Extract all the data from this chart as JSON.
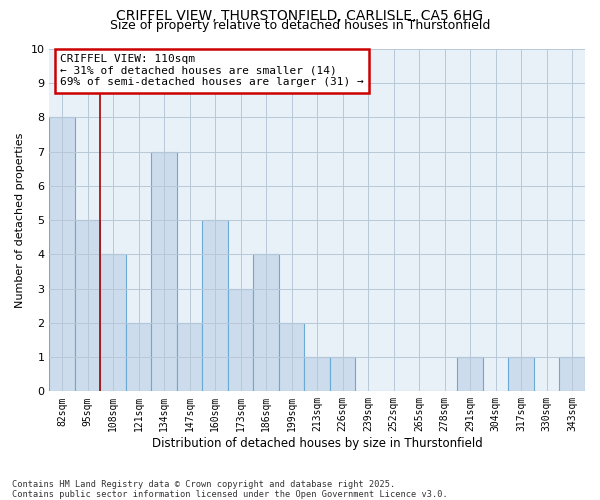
{
  "title1": "CRIFFEL VIEW, THURSTONFIELD, CARLISLE, CA5 6HG",
  "title2": "Size of property relative to detached houses in Thurstonfield",
  "xlabel": "Distribution of detached houses by size in Thurstonfield",
  "ylabel": "Number of detached properties",
  "footer1": "Contains HM Land Registry data © Crown copyright and database right 2025.",
  "footer2": "Contains public sector information licensed under the Open Government Licence v3.0.",
  "annotation_title": "CRIFFEL VIEW: 110sqm",
  "annotation_line1": "← 31% of detached houses are smaller (14)",
  "annotation_line2": "69% of semi-detached houses are larger (31) →",
  "bar_labels": [
    "82sqm",
    "95sqm",
    "108sqm",
    "121sqm",
    "134sqm",
    "147sqm",
    "160sqm",
    "173sqm",
    "186sqm",
    "199sqm",
    "213sqm",
    "226sqm",
    "239sqm",
    "252sqm",
    "265sqm",
    "278sqm",
    "291sqm",
    "304sqm",
    "317sqm",
    "330sqm",
    "343sqm"
  ],
  "bar_values": [
    8,
    5,
    4,
    2,
    7,
    2,
    5,
    3,
    4,
    2,
    1,
    1,
    0,
    0,
    0,
    0,
    1,
    0,
    1,
    0,
    1
  ],
  "bar_color": "#ccdcec",
  "bar_edge_color": "#6aaad4",
  "vline_x_index": 2,
  "vline_color": "#aa0000",
  "ylim": [
    0,
    10
  ],
  "yticks": [
    0,
    1,
    2,
    3,
    4,
    5,
    6,
    7,
    8,
    9,
    10
  ],
  "grid_color": "#b8c8d8",
  "bg_color": "#e8f0f8",
  "annotation_box_color": "#ffffff",
  "annotation_box_edge": "#cc0000",
  "title_fontsize": 10,
  "subtitle_fontsize": 9
}
